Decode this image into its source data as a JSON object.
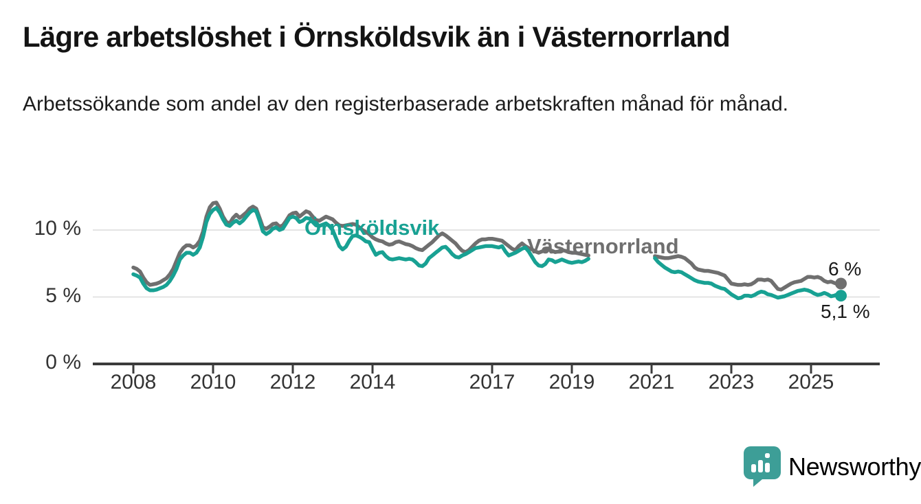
{
  "chart_data": {
    "type": "line",
    "title": "Lägre arbetslöshet i Örnsköldsvik än i Västernorrland",
    "subtitle": "Arbetssökande som andel av den registerbaserade arbetskraften månad för månad.",
    "unit": "%",
    "decimal_separator": ",",
    "grid": "horizontal",
    "legend_position": "inline-labels",
    "x_axis": {
      "tick_years": [
        2008,
        2010,
        2012,
        2014,
        2017,
        2019,
        2021,
        2023,
        2025
      ],
      "range_years": [
        2007,
        2026.7
      ]
    },
    "y_axis": {
      "ticks": [
        {
          "value": 10,
          "label": "10 %"
        },
        {
          "value": 5,
          "label": "5 %"
        },
        {
          "value": 0,
          "label": "0 %"
        }
      ],
      "range": [
        0,
        13.2
      ],
      "gridlines_at": [
        5,
        10
      ]
    },
    "data_gap": {
      "from": "2019-07",
      "to": "2021-01"
    },
    "series": [
      {
        "name": "Västernorrland",
        "color": "#6f6f6f",
        "end_label": "6 %",
        "end_value": 6.0,
        "segments": [
          {
            "start": "2008-01",
            "values": [
              7.2,
              7.1,
              6.9,
              6.45,
              6.1,
              5.9,
              5.95,
              6.0,
              6.1,
              6.25,
              6.4,
              6.7,
              7.1,
              7.7,
              8.3,
              8.65,
              8.85,
              8.85,
              8.7,
              8.85,
              9.2,
              9.9,
              11.0,
              11.7,
              12.0,
              12.05,
              11.6,
              11.0,
              10.6,
              10.5,
              10.9,
              11.15,
              10.9,
              11.1,
              11.3,
              11.6,
              11.75,
              11.6,
              10.9,
              10.2,
              10.1,
              10.25,
              10.45,
              10.5,
              10.25,
              10.35,
              10.7,
              11.1,
              11.25,
              11.3,
              11.0,
              11.2,
              11.4,
              11.3,
              11.0,
              10.75,
              10.7,
              10.85,
              11.0,
              10.9,
              10.8,
              10.55,
              10.35,
              10.3,
              10.35,
              10.4,
              10.45,
              10.4,
              10.2,
              10.0,
              9.85,
              9.7,
              9.45,
              9.3,
              9.2,
              9.15,
              9.0,
              8.9,
              8.95,
              9.1,
              9.15,
              9.05,
              8.95,
              8.9,
              8.8,
              8.65,
              8.55,
              8.5,
              8.7,
              8.9,
              9.1,
              9.35,
              9.6,
              9.75,
              9.6,
              9.4,
              9.2,
              9.0,
              8.7,
              8.45,
              8.35,
              8.5,
              8.75,
              9.0,
              9.2,
              9.3,
              9.3,
              9.35,
              9.35,
              9.3,
              9.25,
              9.2,
              9.0,
              8.8,
              8.6,
              8.5,
              8.8,
              9.0,
              8.8,
              8.65,
              8.55,
              8.4,
              8.3,
              8.4,
              8.5,
              8.55,
              8.45,
              8.35,
              8.4,
              8.5,
              8.45,
              8.35,
              8.3,
              8.3,
              8.25,
              8.2,
              8.15,
              8.1
            ]
          },
          {
            "start": "2021-02",
            "values": [
              8.05,
              8.0,
              7.95,
              7.9,
              7.9,
              7.95,
              8.0,
              8.05,
              8.0,
              7.9,
              7.7,
              7.5,
              7.2,
              7.05,
              7.0,
              6.95,
              6.95,
              6.9,
              6.85,
              6.8,
              6.7,
              6.6,
              6.3,
              6.0,
              5.95,
              5.9,
              5.9,
              5.95,
              5.9,
              5.95,
              6.1,
              6.3,
              6.3,
              6.25,
              6.3,
              6.2,
              5.9,
              5.6,
              5.55,
              5.7,
              5.85,
              6.0,
              6.1,
              6.15,
              6.2,
              6.35,
              6.5,
              6.5,
              6.45,
              6.5,
              6.4,
              6.2,
              6.1,
              6.15,
              6.05,
              5.95,
              6.0
            ]
          }
        ]
      },
      {
        "name": "Örnsköldsvik",
        "color": "#18a193",
        "end_label": "5,1 %",
        "end_value": 5.1,
        "segments": [
          {
            "start": "2008-01",
            "values": [
              6.7,
              6.6,
              6.45,
              6.0,
              5.65,
              5.5,
              5.5,
              5.55,
              5.65,
              5.75,
              5.9,
              6.2,
              6.6,
              7.1,
              7.8,
              8.1,
              8.3,
              8.3,
              8.15,
              8.3,
              8.7,
              9.5,
              10.6,
              11.2,
              11.5,
              11.65,
              11.3,
              10.8,
              10.4,
              10.3,
              10.55,
              10.7,
              10.5,
              10.7,
              11.0,
              11.3,
              11.5,
              11.4,
              10.7,
              9.9,
              9.7,
              9.85,
              10.1,
              10.2,
              10.0,
              10.1,
              10.5,
              10.9,
              11.0,
              10.9,
              10.6,
              10.7,
              10.9,
              10.85,
              10.6,
              10.35,
              10.3,
              10.4,
              10.5,
              10.3,
              10.0,
              9.4,
              8.8,
              8.55,
              8.75,
              9.2,
              9.55,
              9.6,
              9.5,
              9.35,
              9.15,
              9.1,
              8.6,
              8.15,
              8.3,
              8.35,
              8.05,
              7.85,
              7.8,
              7.85,
              7.9,
              7.85,
              7.8,
              7.85,
              7.8,
              7.6,
              7.35,
              7.3,
              7.5,
              7.9,
              8.1,
              8.3,
              8.5,
              8.7,
              8.75,
              8.5,
              8.2,
              8.0,
              7.95,
              8.1,
              8.2,
              8.35,
              8.5,
              8.65,
              8.7,
              8.75,
              8.8,
              8.8,
              8.8,
              8.75,
              8.7,
              8.8,
              8.4,
              8.1,
              8.2,
              8.3,
              8.45,
              8.6,
              8.7,
              8.4,
              8.0,
              7.6,
              7.35,
              7.3,
              7.45,
              7.8,
              7.75,
              7.6,
              7.7,
              7.8,
              7.7,
              7.6,
              7.55,
              7.6,
              7.65,
              7.6,
              7.7,
              7.85
            ]
          },
          {
            "start": "2021-02",
            "values": [
              7.9,
              7.6,
              7.4,
              7.2,
              7.05,
              6.9,
              6.85,
              6.9,
              6.85,
              6.7,
              6.55,
              6.4,
              6.25,
              6.15,
              6.1,
              6.05,
              6.05,
              6.0,
              5.85,
              5.75,
              5.65,
              5.6,
              5.4,
              5.2,
              5.05,
              4.9,
              4.95,
              5.1,
              5.1,
              5.05,
              5.15,
              5.3,
              5.4,
              5.35,
              5.2,
              5.15,
              5.05,
              4.95,
              5.0,
              5.05,
              5.15,
              5.25,
              5.35,
              5.45,
              5.5,
              5.55,
              5.5,
              5.4,
              5.25,
              5.15,
              5.2,
              5.3,
              5.2,
              5.05,
              5.1,
              5.2,
              5.1
            ]
          }
        ]
      }
    ]
  },
  "branding": {
    "logo_text": "Newsworthy",
    "logo_icon": "bar-chart-speech-bubble-icon",
    "color": "#3d9e97"
  }
}
